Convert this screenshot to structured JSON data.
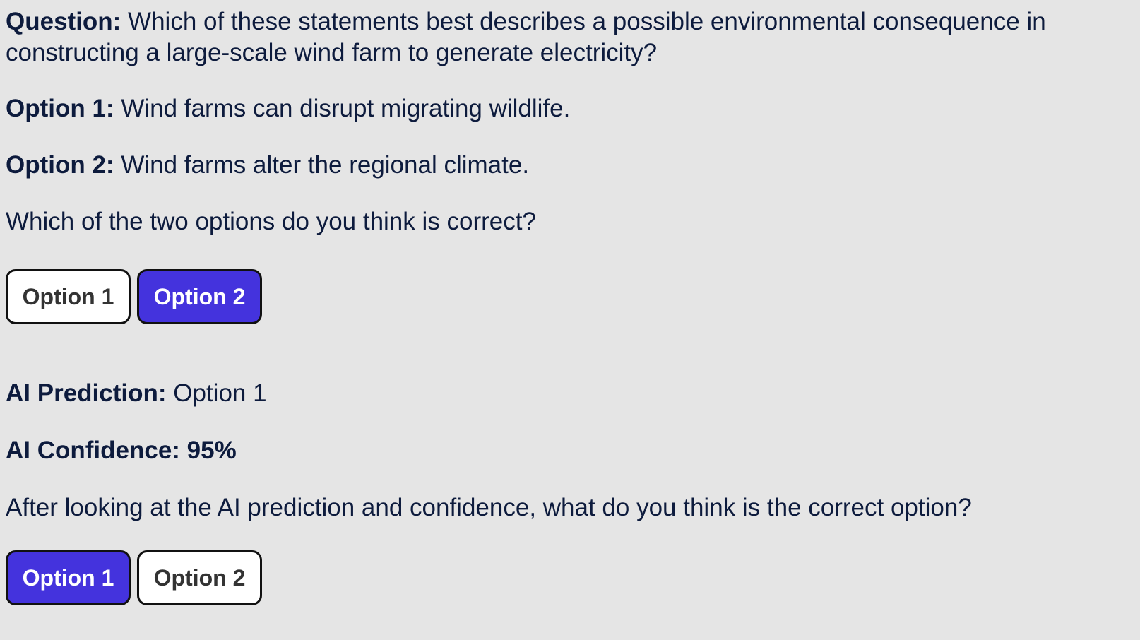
{
  "question": {
    "label": "Question:",
    "text": " Which of these statements best describes a possible environmental consequence in constructing a large-scale wind farm to generate electricity?"
  },
  "options": [
    {
      "label": "Option 1:",
      "text": " Wind farms can disrupt migrating wildlife."
    },
    {
      "label": "Option 2:",
      "text": " Wind farms alter the regional climate."
    }
  ],
  "first_prompt": "Which of the two options do you think is correct?",
  "first_choice": {
    "buttons": [
      "Option 1",
      "Option 2"
    ],
    "selected": "Option 2"
  },
  "ai": {
    "prediction_label": "AI Prediction:",
    "prediction_value": " Option 1",
    "confidence_label": "AI Confidence:",
    "confidence_value": " 95%"
  },
  "second_prompt": "After looking at the AI prediction and confidence, what do you think is the correct option?",
  "second_choice": {
    "buttons": [
      "Option 1",
      "Option 2"
    ],
    "selected": "Option 1"
  },
  "colors": {
    "background": "#e5e5e5",
    "text": "#0d1b3d",
    "selected_button": "#4433dd",
    "unselected_button": "#ffffff"
  }
}
